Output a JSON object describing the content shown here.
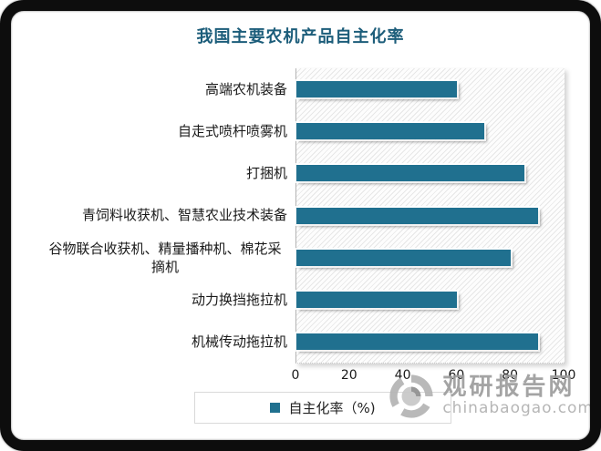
{
  "title": {
    "text": "我国主要农机产品自主化率",
    "color": "#1C5D7A"
  },
  "chart_data": {
    "type": "bar",
    "orientation": "horizontal",
    "title": "我国主要农机产品自主化率",
    "categories": [
      "高端农机装备",
      "自走式喷杆喷雾机",
      "打捆机",
      "青饲料收获机、智慧农业技术装备",
      "谷物联合收获机、精量播种机、棉花采摘机",
      "动力换挡拖拉机",
      "机械传动拖拉机"
    ],
    "series": [
      {
        "name": "自主化率（%)",
        "values": [
          60,
          70,
          85,
          90,
          80,
          60,
          90
        ]
      }
    ],
    "xlim": [
      0,
      100
    ],
    "xticks": [
      0,
      20,
      40,
      60,
      80,
      100
    ],
    "grid": false,
    "legend_position": "bottom",
    "bar_color": "#20708F",
    "track_style": "diagonal-hatch"
  },
  "legend": {
    "label": "自主化率（%)",
    "marker_color": "#20708F"
  },
  "watermark": {
    "name": "观研报告网",
    "url": "chinabaogao.com"
  }
}
